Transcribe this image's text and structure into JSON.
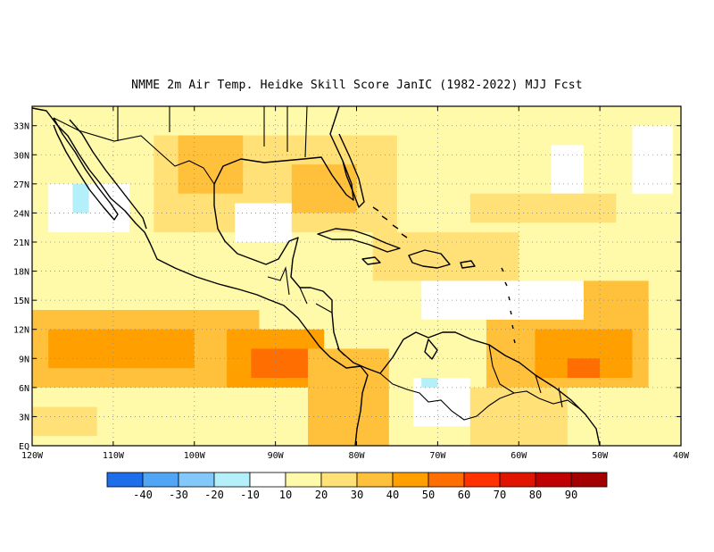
{
  "title": "NMME  2m Air Temp. Heidke Skill Score JanIC (1982-2022) MJJ Fcst",
  "chart_data": {
    "type": "heatmap",
    "title": "NMME  2m Air Temp. Heidke Skill Score JanIC (1982-2022) MJJ Fcst",
    "lon_range": [
      -120,
      -40
    ],
    "lat_range": [
      0,
      35
    ],
    "x_tick_labels": [
      "120W",
      "110W",
      "100W",
      "90W",
      "80W",
      "70W",
      "60W",
      "50W",
      "40W"
    ],
    "x_tick_values": [
      -120,
      -110,
      -100,
      -90,
      -80,
      -70,
      -60,
      -50,
      -40
    ],
    "y_tick_labels": [
      "EQ",
      "3N",
      "6N",
      "9N",
      "12N",
      "15N",
      "18N",
      "21N",
      "24N",
      "27N",
      "30N",
      "33N"
    ],
    "y_tick_values": [
      0,
      3,
      6,
      9,
      12,
      15,
      18,
      21,
      24,
      27,
      30,
      33
    ],
    "grid": "dotted",
    "colorbar": {
      "bins": [
        -50,
        -40,
        -30,
        -20,
        -10,
        10,
        20,
        30,
        40,
        50,
        60,
        70,
        80,
        90,
        100
      ],
      "labels": [
        "-40",
        "-30",
        "-20",
        "-10",
        "10",
        "20",
        "30",
        "40",
        "50",
        "60",
        "70",
        "80",
        "90"
      ],
      "colors": [
        "#1e6eeb",
        "#50a5f5",
        "#82c8fa",
        "#b4f0fa",
        "#ffffff",
        "#fffaaa",
        "#ffe178",
        "#ffc03c",
        "#ffa000",
        "#ff6e00",
        "#ff3200",
        "#e11400",
        "#c00000",
        "#a50000"
      ]
    },
    "skill_regions": [
      {
        "lon": [
          -120,
          -40
        ],
        "lat": [
          0,
          35
        ],
        "value": 15
      },
      {
        "lon": [
          -105,
          -75
        ],
        "lat": [
          22,
          32
        ],
        "value": 28
      },
      {
        "lon": [
          -102,
          -94
        ],
        "lat": [
          26,
          32
        ],
        "value": 36
      },
      {
        "lon": [
          -88,
          -80
        ],
        "lat": [
          24,
          29
        ],
        "value": 36
      },
      {
        "lon": [
          -120,
          -92
        ],
        "lat": [
          6,
          14
        ],
        "value": 30
      },
      {
        "lon": [
          -118,
          -100
        ],
        "lat": [
          8,
          12
        ],
        "value": 40
      },
      {
        "lon": [
          -96,
          -84
        ],
        "lat": [
          6,
          12
        ],
        "value": 42
      },
      {
        "lon": [
          -93,
          -86
        ],
        "lat": [
          7,
          10
        ],
        "value": 52
      },
      {
        "lon": [
          -86,
          -76
        ],
        "lat": [
          0,
          10
        ],
        "value": 30
      },
      {
        "lon": [
          -64,
          -44
        ],
        "lat": [
          6,
          17
        ],
        "value": 32
      },
      {
        "lon": [
          -58,
          -46
        ],
        "lat": [
          7,
          12
        ],
        "value": 42
      },
      {
        "lon": [
          -54,
          -50
        ],
        "lat": [
          7,
          9
        ],
        "value": 55
      },
      {
        "lon": [
          -78,
          -60
        ],
        "lat": [
          17,
          22
        ],
        "value": 27
      },
      {
        "lon": [
          -72,
          -52
        ],
        "lat": [
          13,
          17
        ],
        "value": 6
      },
      {
        "lon": [
          -95,
          -88
        ],
        "lat": [
          21,
          25
        ],
        "value": 5
      },
      {
        "lon": [
          -118,
          -108
        ],
        "lat": [
          22,
          27
        ],
        "value": 5
      },
      {
        "lon": [
          -115,
          -113
        ],
        "lat": [
          24,
          27
        ],
        "value": -12
      },
      {
        "lon": [
          -73,
          -66
        ],
        "lat": [
          2,
          7
        ],
        "value": 5
      },
      {
        "lon": [
          -72,
          -70
        ],
        "lat": [
          6,
          7
        ],
        "value": -12
      },
      {
        "lon": [
          -56,
          -52
        ],
        "lat": [
          26,
          31
        ],
        "value": 6
      },
      {
        "lon": [
          -46,
          -41
        ],
        "lat": [
          26,
          33
        ],
        "value": 6
      },
      {
        "lon": [
          -66,
          -48
        ],
        "lat": [
          23,
          26
        ],
        "value": 27
      },
      {
        "lon": [
          -120,
          -112
        ],
        "lat": [
          1,
          4
        ],
        "value": 27
      },
      {
        "lon": [
          -66,
          -54
        ],
        "lat": [
          0,
          6
        ],
        "value": 24
      }
    ]
  }
}
